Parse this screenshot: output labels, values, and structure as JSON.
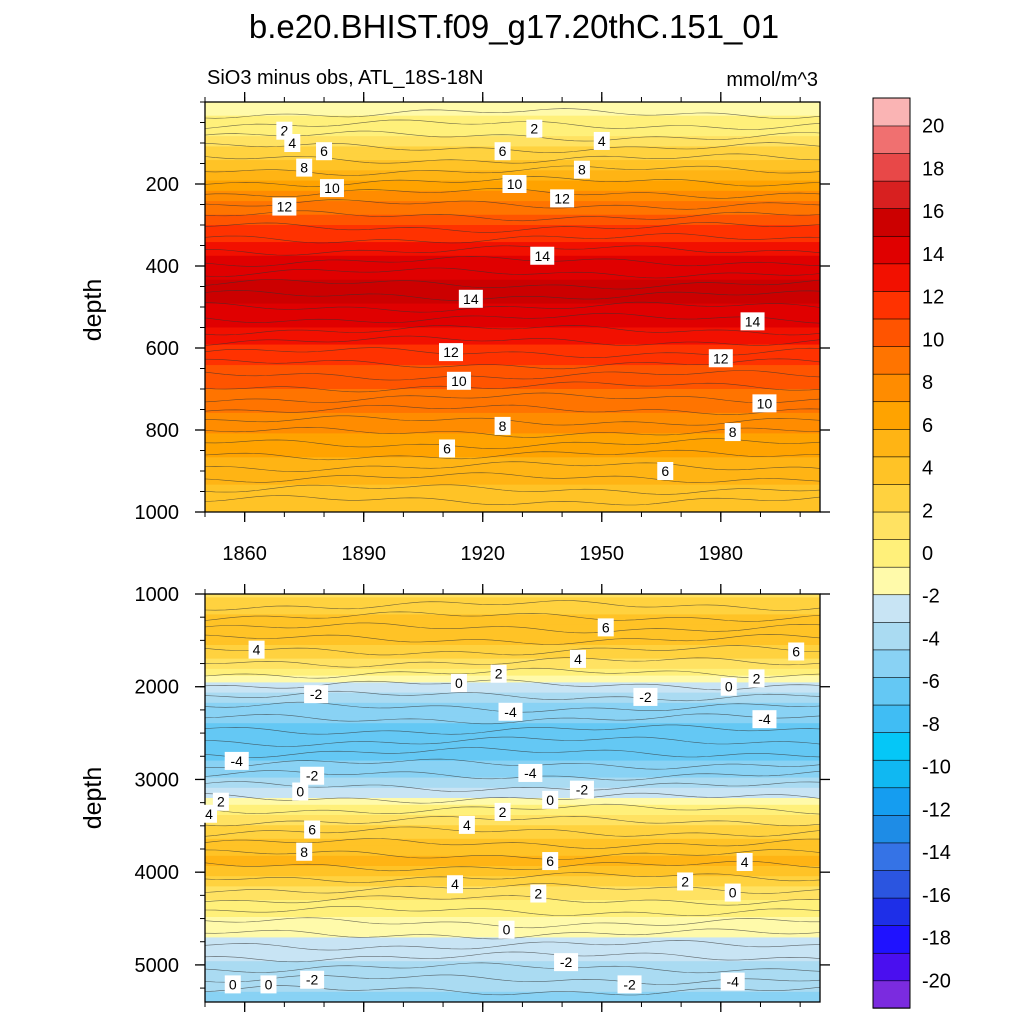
{
  "chart_data": {
    "type": "heatmap",
    "title": "b.e20.BHIST.f09_g17.20thC.151_01",
    "subtitle_left": "SiO3 minus obs, ATL_18S-18N",
    "subtitle_right": "mmol/m^3",
    "x_tick_labels": [
      "1860",
      "1890",
      "1920",
      "1950",
      "1980"
    ],
    "x_ticks": [
      1860,
      1890,
      1920,
      1950,
      1980
    ],
    "xlim": [
      1850,
      2005
    ],
    "colorbar": {
      "levels": [
        -20,
        -18,
        -16,
        -14,
        -12,
        -10,
        -8,
        -6,
        -4,
        -2,
        0,
        2,
        4,
        6,
        8,
        10,
        12,
        14,
        16,
        18,
        20
      ],
      "tick_labels": [
        "20",
        "18",
        "16",
        "14",
        "12",
        "10",
        "8",
        "6",
        "4",
        "2",
        "0",
        "-2",
        "-4",
        "-6",
        "-8",
        "-10",
        "-12",
        "-14",
        "-16",
        "-18",
        "-20"
      ],
      "colors": [
        "#7b2bdf",
        "#4a0fef",
        "#1f12ff",
        "#1e2fe8",
        "#2b55e0",
        "#3573e6",
        "#1e8ce6",
        "#159df0",
        "#10b8f2",
        "#05c7f7",
        "#40bdf4",
        "#64c8f4",
        "#89d2f4",
        "#aadbf2",
        "#c8e4f4",
        "#fffaaa",
        "#fff07a",
        "#ffe262",
        "#ffd23f",
        "#ffc326",
        "#ffb414",
        "#ffa300",
        "#ff8c00",
        "#ff7400",
        "#ff5400",
        "#ff3200",
        "#f21000",
        "#e00000",
        "#cc0000",
        "#d82020",
        "#e84848",
        "#f07070",
        "#fab4b4"
      ]
    },
    "panels": [
      {
        "name": "upper",
        "ylabel": "depth",
        "ylim": [
          0,
          1000
        ],
        "y_ticks": [
          200,
          400,
          600,
          800,
          1000
        ],
        "y_tick_labels": [
          "200",
          "400",
          "600",
          "800",
          "1000"
        ],
        "bands": [
          {
            "depth": 0,
            "value": 0.5
          },
          {
            "depth": 60,
            "value": 1.5
          },
          {
            "depth": 130,
            "value": 4
          },
          {
            "depth": 220,
            "value": 8
          },
          {
            "depth": 300,
            "value": 11
          },
          {
            "depth": 380,
            "value": 13.5
          },
          {
            "depth": 450,
            "value": 14.8
          },
          {
            "depth": 520,
            "value": 14.2
          },
          {
            "depth": 600,
            "value": 12
          },
          {
            "depth": 700,
            "value": 10
          },
          {
            "depth": 800,
            "value": 8
          },
          {
            "depth": 900,
            "value": 6
          },
          {
            "depth": 1000,
            "value": 4.5
          }
        ],
        "contour_labels": [
          {
            "text": "2",
            "x": 1870,
            "depth": 70
          },
          {
            "text": "2",
            "x": 1933,
            "depth": 65
          },
          {
            "text": "4",
            "x": 1872,
            "depth": 100
          },
          {
            "text": "4",
            "x": 1950,
            "depth": 95
          },
          {
            "text": "6",
            "x": 1880,
            "depth": 120
          },
          {
            "text": "6",
            "x": 1925,
            "depth": 120
          },
          {
            "text": "8",
            "x": 1875,
            "depth": 160
          },
          {
            "text": "8",
            "x": 1945,
            "depth": 165
          },
          {
            "text": "10",
            "x": 1882,
            "depth": 210
          },
          {
            "text": "10",
            "x": 1928,
            "depth": 200
          },
          {
            "text": "12",
            "x": 1870,
            "depth": 255
          },
          {
            "text": "12",
            "x": 1940,
            "depth": 235
          },
          {
            "text": "14",
            "x": 1935,
            "depth": 375
          },
          {
            "text": "14",
            "x": 1917,
            "depth": 480
          },
          {
            "text": "14",
            "x": 1988,
            "depth": 535
          },
          {
            "text": "12",
            "x": 1912,
            "depth": 610
          },
          {
            "text": "12",
            "x": 1980,
            "depth": 625
          },
          {
            "text": "10",
            "x": 1914,
            "depth": 680
          },
          {
            "text": "10",
            "x": 1991,
            "depth": 735
          },
          {
            "text": "8",
            "x": 1925,
            "depth": 790
          },
          {
            "text": "8",
            "x": 1983,
            "depth": 805
          },
          {
            "text": "6",
            "x": 1911,
            "depth": 845
          },
          {
            "text": "6",
            "x": 1966,
            "depth": 900
          }
        ]
      },
      {
        "name": "lower",
        "ylabel": "depth",
        "ylim": [
          1000,
          5400
        ],
        "y_ticks": [
          1000,
          2000,
          3000,
          4000,
          5000
        ],
        "y_tick_labels": [
          "1000",
          "2000",
          "3000",
          "4000",
          "5000"
        ],
        "bands": [
          {
            "depth": 1000,
            "value": 3
          },
          {
            "depth": 1400,
            "value": 5.5
          },
          {
            "depth": 1750,
            "value": 3
          },
          {
            "depth": 1950,
            "value": 0
          },
          {
            "depth": 2200,
            "value": -3
          },
          {
            "depth": 2550,
            "value": -5
          },
          {
            "depth": 2900,
            "value": -3.5
          },
          {
            "depth": 3100,
            "value": -1
          },
          {
            "depth": 3350,
            "value": 2
          },
          {
            "depth": 3700,
            "value": 5
          },
          {
            "depth": 3900,
            "value": 6
          },
          {
            "depth": 4200,
            "value": 3
          },
          {
            "depth": 4500,
            "value": 1
          },
          {
            "depth": 4800,
            "value": -0.5
          },
          {
            "depth": 5100,
            "value": -2
          },
          {
            "depth": 5400,
            "value": -3
          }
        ],
        "contour_labels": [
          {
            "text": "6",
            "x": 1951,
            "depth": 1360
          },
          {
            "text": "6",
            "x": 1999,
            "depth": 1620
          },
          {
            "text": "4",
            "x": 1863,
            "depth": 1600
          },
          {
            "text": "4",
            "x": 1944,
            "depth": 1700
          },
          {
            "text": "2",
            "x": 1924,
            "depth": 1860
          },
          {
            "text": "2",
            "x": 1989,
            "depth": 1910
          },
          {
            "text": "0",
            "x": 1914,
            "depth": 1960
          },
          {
            "text": "0",
            "x": 1982,
            "depth": 2000
          },
          {
            "text": "-2",
            "x": 1878,
            "depth": 2080
          },
          {
            "text": "-2",
            "x": 1961,
            "depth": 2110
          },
          {
            "text": "-4",
            "x": 1927,
            "depth": 2270
          },
          {
            "text": "-4",
            "x": 1991,
            "depth": 2350
          },
          {
            "text": "-4",
            "x": 1858,
            "depth": 2800
          },
          {
            "text": "-4",
            "x": 1932,
            "depth": 2930
          },
          {
            "text": "-2",
            "x": 1877,
            "depth": 2960
          },
          {
            "text": "-2",
            "x": 1945,
            "depth": 3110
          },
          {
            "text": "0",
            "x": 1874,
            "depth": 3130
          },
          {
            "text": "0",
            "x": 1937,
            "depth": 3220
          },
          {
            "text": "2",
            "x": 1854,
            "depth": 3240
          },
          {
            "text": "2",
            "x": 1925,
            "depth": 3350
          },
          {
            "text": "4",
            "x": 1851,
            "depth": 3370
          },
          {
            "text": "4",
            "x": 1916,
            "depth": 3490
          },
          {
            "text": "6",
            "x": 1877,
            "depth": 3540
          },
          {
            "text": "8",
            "x": 1875,
            "depth": 3780
          },
          {
            "text": "6",
            "x": 1937,
            "depth": 3880
          },
          {
            "text": "4",
            "x": 1986,
            "depth": 3890
          },
          {
            "text": "4",
            "x": 1913,
            "depth": 4130
          },
          {
            "text": "2",
            "x": 1971,
            "depth": 4100
          },
          {
            "text": "2",
            "x": 1934,
            "depth": 4230
          },
          {
            "text": "0",
            "x": 1983,
            "depth": 4220
          },
          {
            "text": "0",
            "x": 1926,
            "depth": 4620
          },
          {
            "text": "-2",
            "x": 1941,
            "depth": 4970
          },
          {
            "text": "-2",
            "x": 1957,
            "depth": 5210
          },
          {
            "text": "-4",
            "x": 1983,
            "depth": 5180
          },
          {
            "text": "-2",
            "x": 1877,
            "depth": 5160
          },
          {
            "text": "0",
            "x": 1857,
            "depth": 5210
          },
          {
            "text": "0",
            "x": 1866,
            "depth": 5210
          }
        ]
      }
    ]
  }
}
